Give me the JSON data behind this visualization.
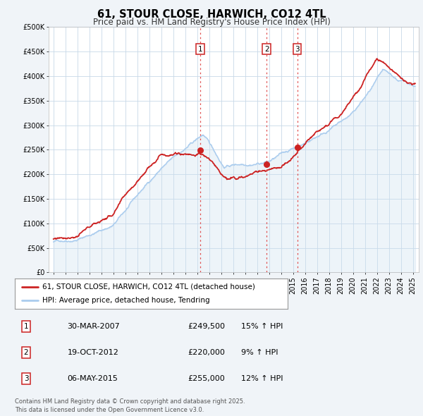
{
  "title": "61, STOUR CLOSE, HARWICH, CO12 4TL",
  "subtitle": "Price paid vs. HM Land Registry's House Price Index (HPI)",
  "legend_label_red": "61, STOUR CLOSE, HARWICH, CO12 4TL (detached house)",
  "legend_label_blue": "HPI: Average price, detached house, Tendring",
  "footer_line1": "Contains HM Land Registry data © Crown copyright and database right 2025.",
  "footer_line2": "This data is licensed under the Open Government Licence v3.0.",
  "transactions": [
    {
      "label": "1",
      "date": "30-MAR-2007",
      "price": 249500,
      "hpi_pct": "15%",
      "direction": "↑"
    },
    {
      "label": "2",
      "date": "19-OCT-2012",
      "price": 220000,
      "hpi_pct": "9%",
      "direction": "↑"
    },
    {
      "label": "3",
      "date": "06-MAY-2015",
      "price": 255000,
      "hpi_pct": "12%",
      "direction": "↑"
    }
  ],
  "transaction_dates_decimal": [
    2007.24,
    2012.8,
    2015.35
  ],
  "transaction_prices": [
    249500,
    220000,
    255000
  ],
  "vline_color": "#e05050",
  "red_line_color": "#cc2222",
  "blue_line_color": "#aaccee",
  "blue_fill_color": "#cce0f0",
  "dot_color": "#cc2222",
  "ylim": [
    0,
    500000
  ],
  "yticks": [
    0,
    50000,
    100000,
    150000,
    200000,
    250000,
    300000,
    350000,
    400000,
    450000,
    500000
  ],
  "xlim_start": 1994.6,
  "xlim_end": 2025.5,
  "background_color": "#f0f4f8",
  "plot_bg_color": "#ffffff",
  "grid_color": "#c8d8e8",
  "title_fontsize": 10.5,
  "subtitle_fontsize": 8.5,
  "tick_fontsize": 7,
  "label_fontsize": 7.5
}
